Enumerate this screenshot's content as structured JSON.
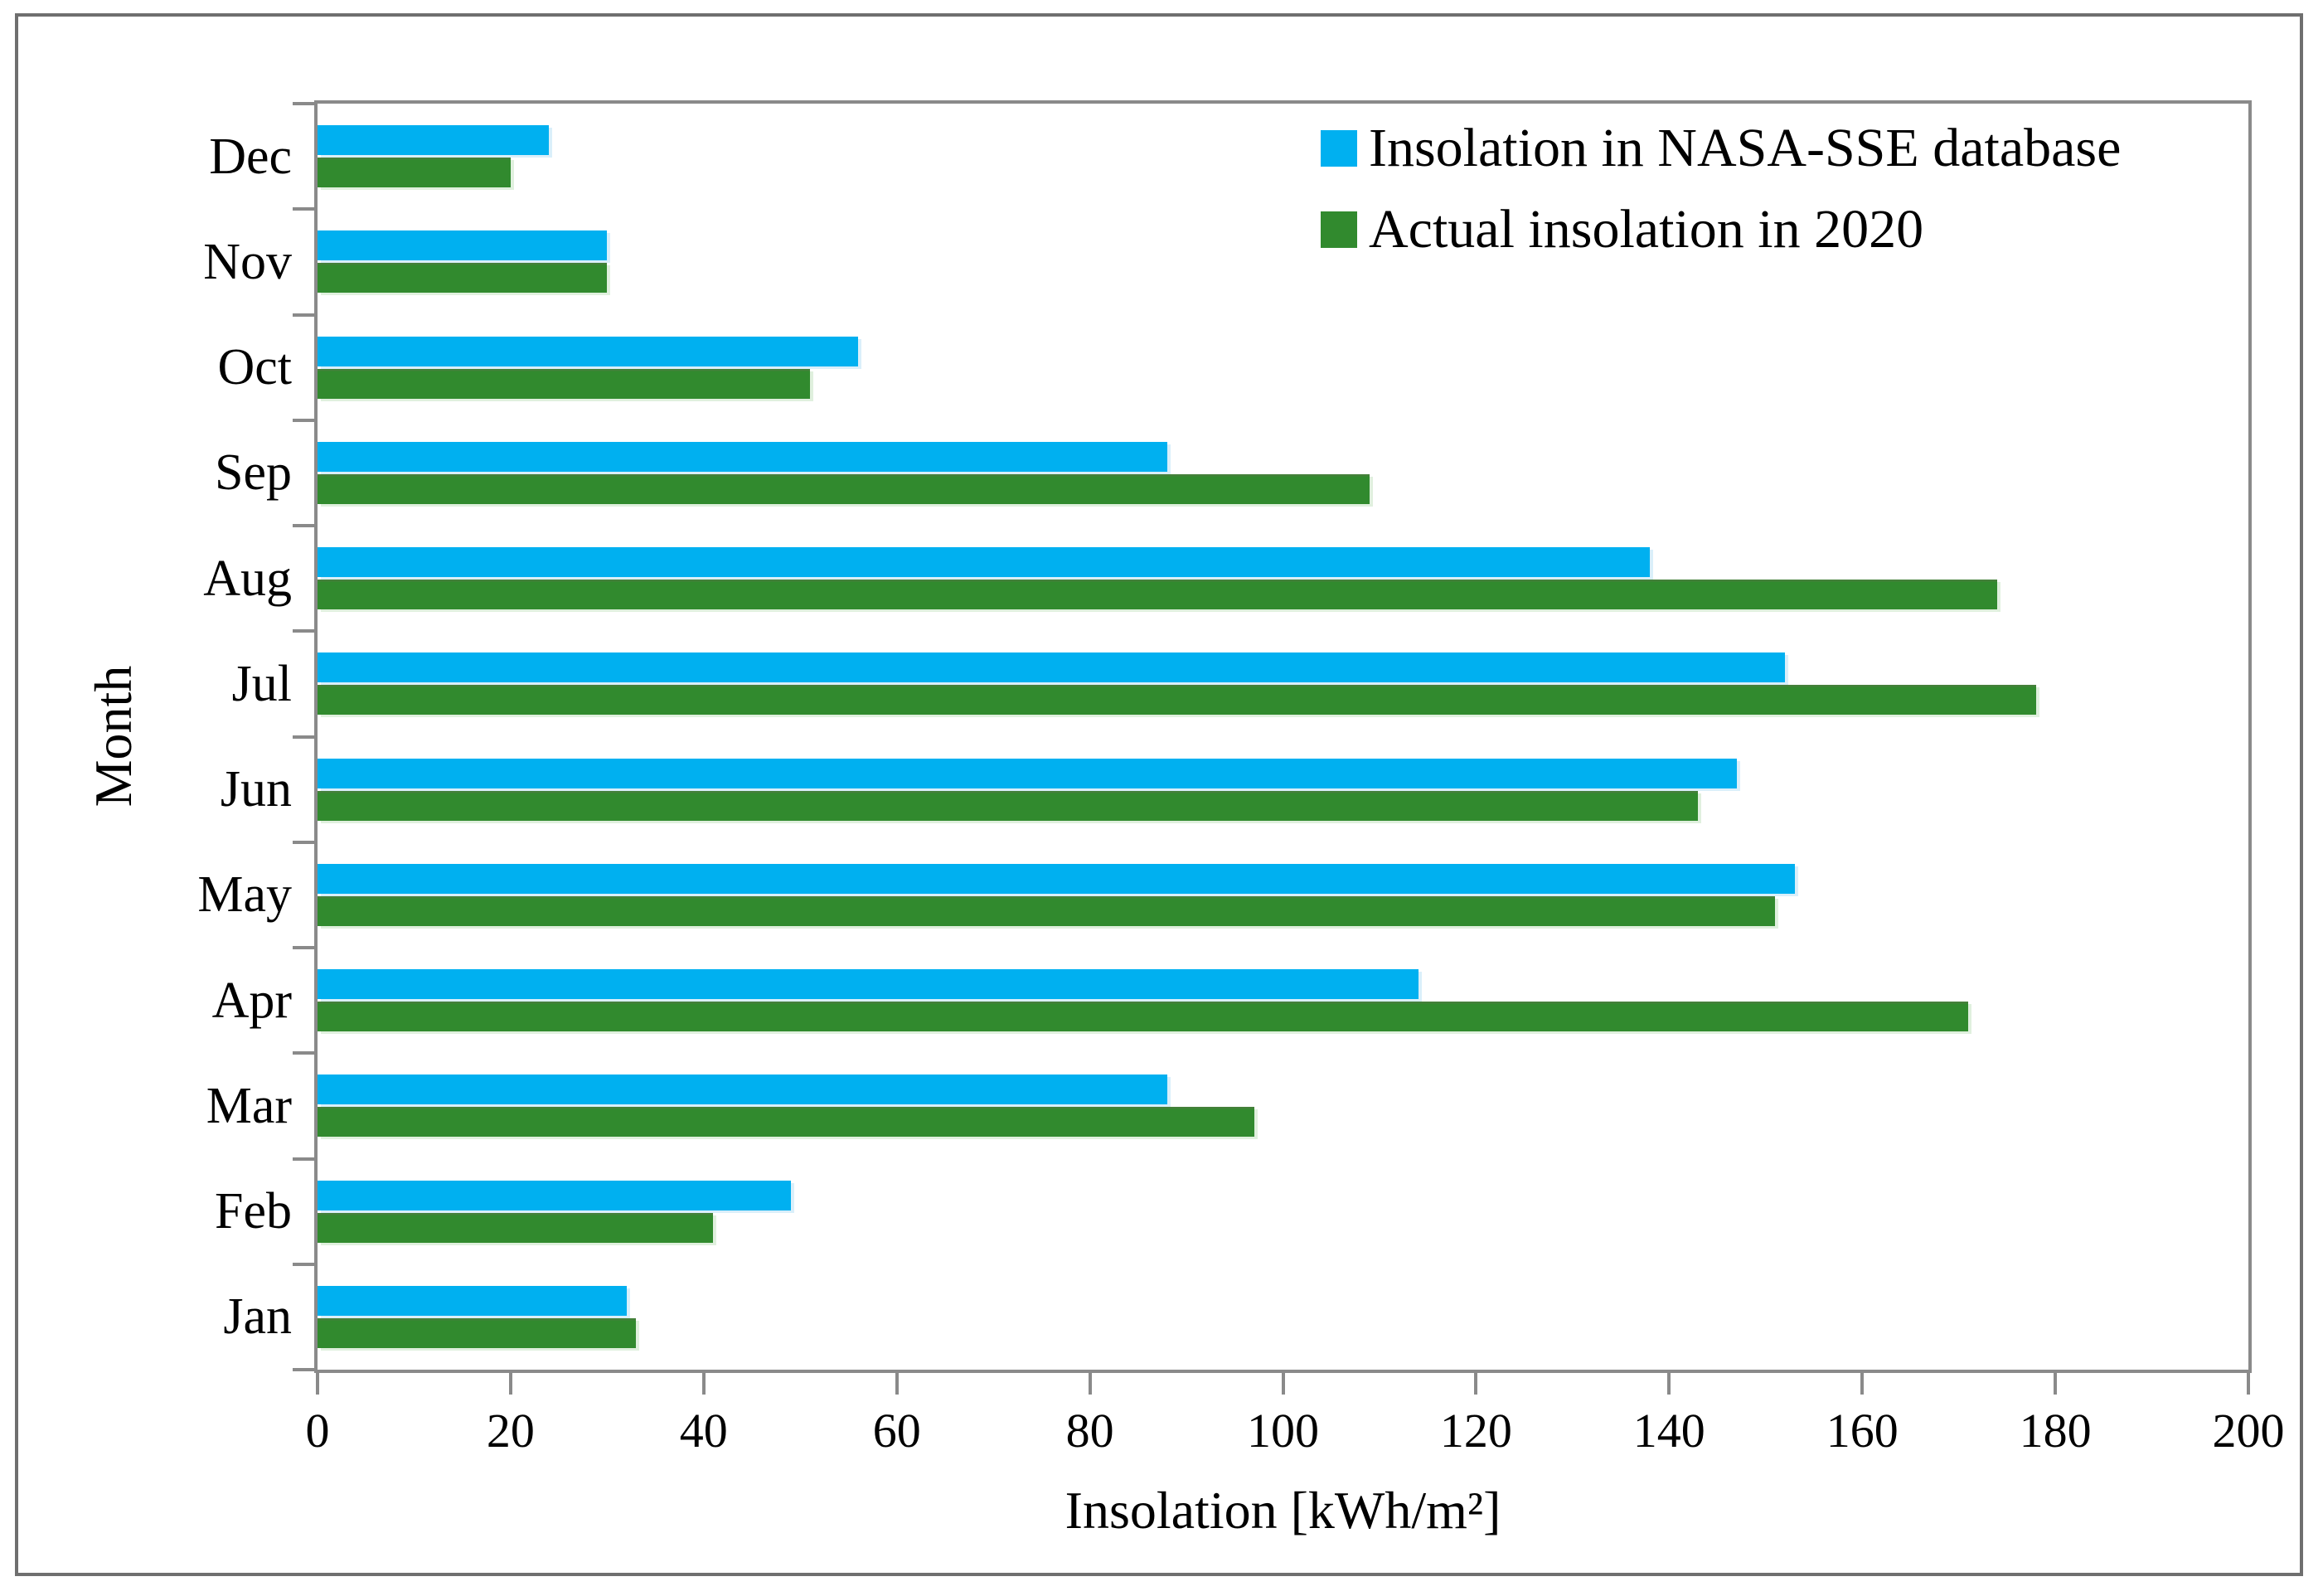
{
  "figure": {
    "xlabel": "Insolation [kWh/m²]",
    "ylabel": "Month"
  },
  "chart_data": {
    "type": "bar",
    "orientation": "horizontal",
    "title": "",
    "xlabel": "Insolation [kWh/m²]",
    "ylabel": "Month",
    "xlim": [
      0,
      200
    ],
    "xticks": [
      0,
      20,
      40,
      60,
      80,
      100,
      120,
      140,
      160,
      180,
      200
    ],
    "grid": false,
    "legend_position": "top-right-inside",
    "categories_top_to_bottom": [
      "Dec",
      "Nov",
      "Oct",
      "Sep",
      "Aug",
      "Jul",
      "Jun",
      "May",
      "Apr",
      "Mar",
      "Feb",
      "Jan"
    ],
    "series": [
      {
        "name": "Insolation in NASA-SSE database",
        "color": "#00B0F0",
        "values": [
          24,
          30,
          56,
          88,
          138,
          152,
          147,
          153,
          114,
          88,
          49,
          32
        ]
      },
      {
        "name": "Actual insolation in 2020",
        "color": "#318A2E",
        "values": [
          20,
          30,
          51,
          109,
          174,
          178,
          143,
          151,
          171,
          97,
          41,
          33
        ]
      }
    ],
    "axis_color": "#8a8a8a",
    "frame_color": "#6f6f6f"
  }
}
